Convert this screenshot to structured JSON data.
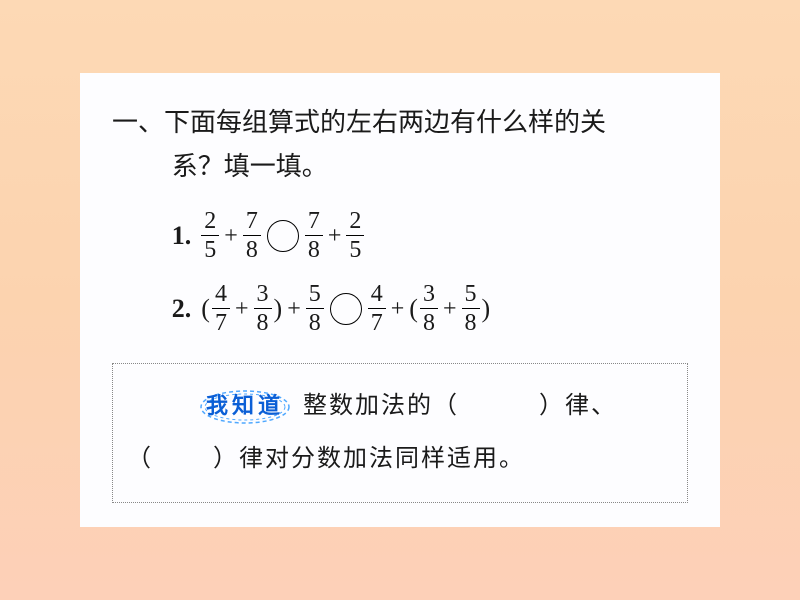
{
  "heading": {
    "marker": "一、",
    "line1_rest": "下面每组算式的左右两边有什么样的关",
    "line2": "系？填一填。"
  },
  "problems": [
    {
      "label": "1.",
      "left": [
        {
          "type": "frac",
          "n": "2",
          "d": "5"
        },
        {
          "type": "op",
          "v": "+"
        },
        {
          "type": "frac",
          "n": "7",
          "d": "8"
        }
      ],
      "right": [
        {
          "type": "frac",
          "n": "7",
          "d": "8"
        },
        {
          "type": "op",
          "v": "+"
        },
        {
          "type": "frac",
          "n": "2",
          "d": "5"
        }
      ]
    },
    {
      "label": "2.",
      "left": [
        {
          "type": "paren",
          "v": "("
        },
        {
          "type": "frac",
          "n": "4",
          "d": "7"
        },
        {
          "type": "op",
          "v": "+"
        },
        {
          "type": "frac",
          "n": "3",
          "d": "8"
        },
        {
          "type": "paren",
          "v": ")"
        },
        {
          "type": "op",
          "v": "+"
        },
        {
          "type": "frac",
          "n": "5",
          "d": "8"
        }
      ],
      "right": [
        {
          "type": "frac",
          "n": "4",
          "d": "7"
        },
        {
          "type": "op",
          "v": "+"
        },
        {
          "type": "paren",
          "v": "("
        },
        {
          "type": "frac",
          "n": "3",
          "d": "8"
        },
        {
          "type": "op",
          "v": "+"
        },
        {
          "type": "frac",
          "n": "5",
          "d": "8"
        },
        {
          "type": "paren",
          "v": ")"
        }
      ]
    }
  ],
  "info_box": {
    "tag_label": "我知道",
    "text_before": "整数加法的（",
    "blank1": "",
    "text_mid1": "）律、",
    "line2_open": "（",
    "blank2": "",
    "line2_rest": "）律对分数加法同样适用。"
  },
  "style": {
    "tag_color": "#4fa8ff",
    "tag_text_color": "#0b5fd6"
  }
}
